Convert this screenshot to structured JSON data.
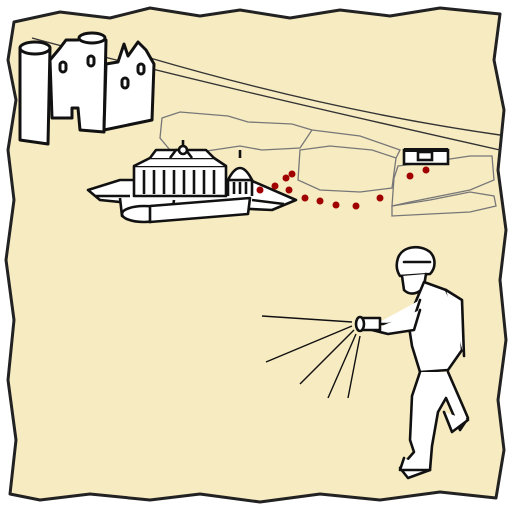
{
  "scene": {
    "background_color": "#ffffff",
    "parchment_color": "#f7ebc2",
    "ink_color": "#111111",
    "light_ink_color": "#777777",
    "trail_color": "#a00000",
    "icons": [
      "torn-parchment-map",
      "castle-ruins-icon",
      "capitol-building-icon",
      "distant-bunker-icon",
      "soldier-with-flashlight-icon"
    ]
  }
}
